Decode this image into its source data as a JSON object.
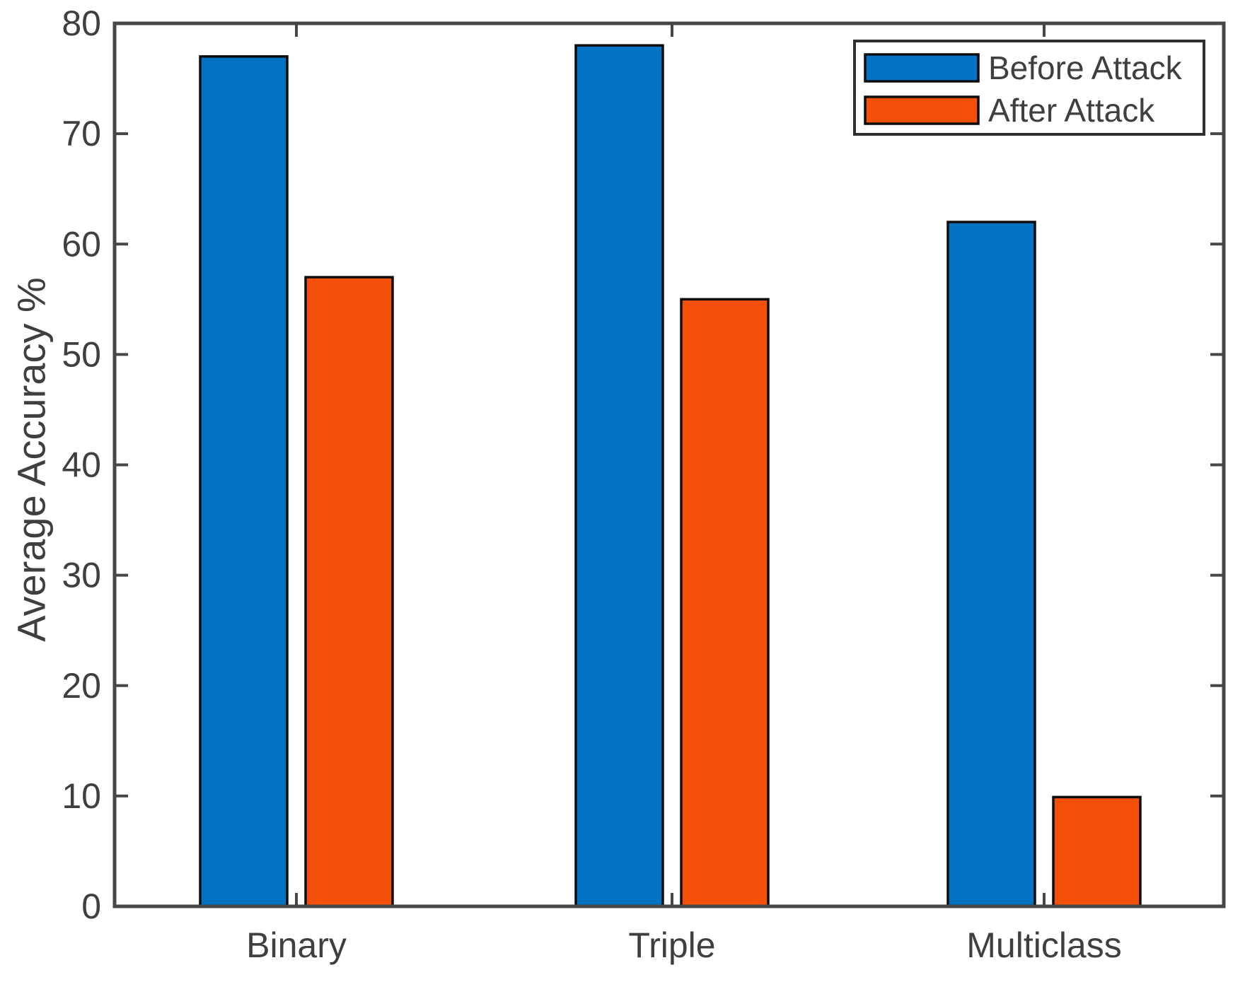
{
  "chart_data": {
    "type": "bar",
    "categories": [
      "Binary",
      "Triple",
      "Multiclass"
    ],
    "series": [
      {
        "name": "Before Attack",
        "color": "#0272C2",
        "values": [
          77,
          78,
          62
        ]
      },
      {
        "name": "After Attack",
        "color": "#F4500A",
        "values": [
          57,
          55,
          9.9
        ]
      }
    ],
    "xlabel": "",
    "ylabel": "Average Accuracy %",
    "ylim": [
      0,
      80
    ],
    "ytick_interval": 10,
    "ytick_labels": [
      "0",
      "10",
      "20",
      "30",
      "40",
      "50",
      "60",
      "70",
      "80"
    ],
    "grid": false,
    "legend_position": "top-right",
    "bar_edge_color": "#0d0d0d",
    "axis_color": "#464646",
    "text_color": "#3f3f3f",
    "legend_border_color": "#2f2f2f",
    "plot_background": "#ffffff"
  }
}
